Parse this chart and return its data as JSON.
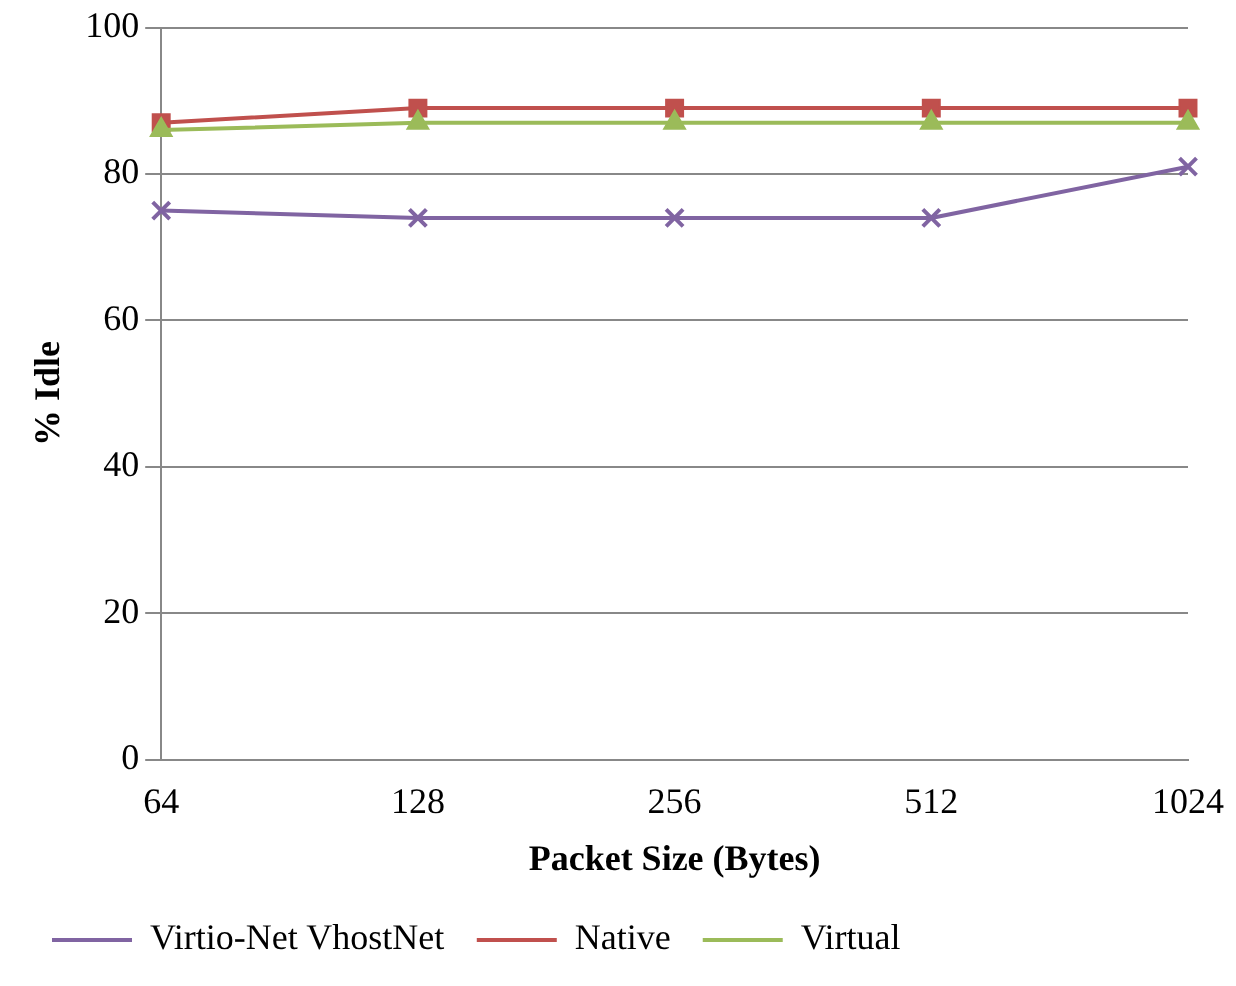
{
  "chart_data": {
    "type": "line",
    "xlabel": "Packet Size (Bytes)",
    "ylabel": "% Idle",
    "categories": [
      "64",
      "128",
      "256",
      "512",
      "1024"
    ],
    "series": [
      {
        "name": "Virtio-Net VhostNet",
        "color": "#8064a2",
        "marker": "cross",
        "values": [
          75,
          74,
          74,
          74,
          81
        ]
      },
      {
        "name": "Native",
        "color": "#c0504d",
        "marker": "square",
        "values": [
          87,
          89,
          89,
          89,
          89
        ]
      },
      {
        "name": "Virtual",
        "color": "#9bbb59",
        "marker": "triangle",
        "values": [
          86,
          87,
          87,
          87,
          87
        ]
      }
    ],
    "ylim": [
      0,
      100
    ],
    "yticks": [
      0,
      20,
      40,
      60,
      80,
      100
    ],
    "grid": "y",
    "legend": "bottom"
  }
}
